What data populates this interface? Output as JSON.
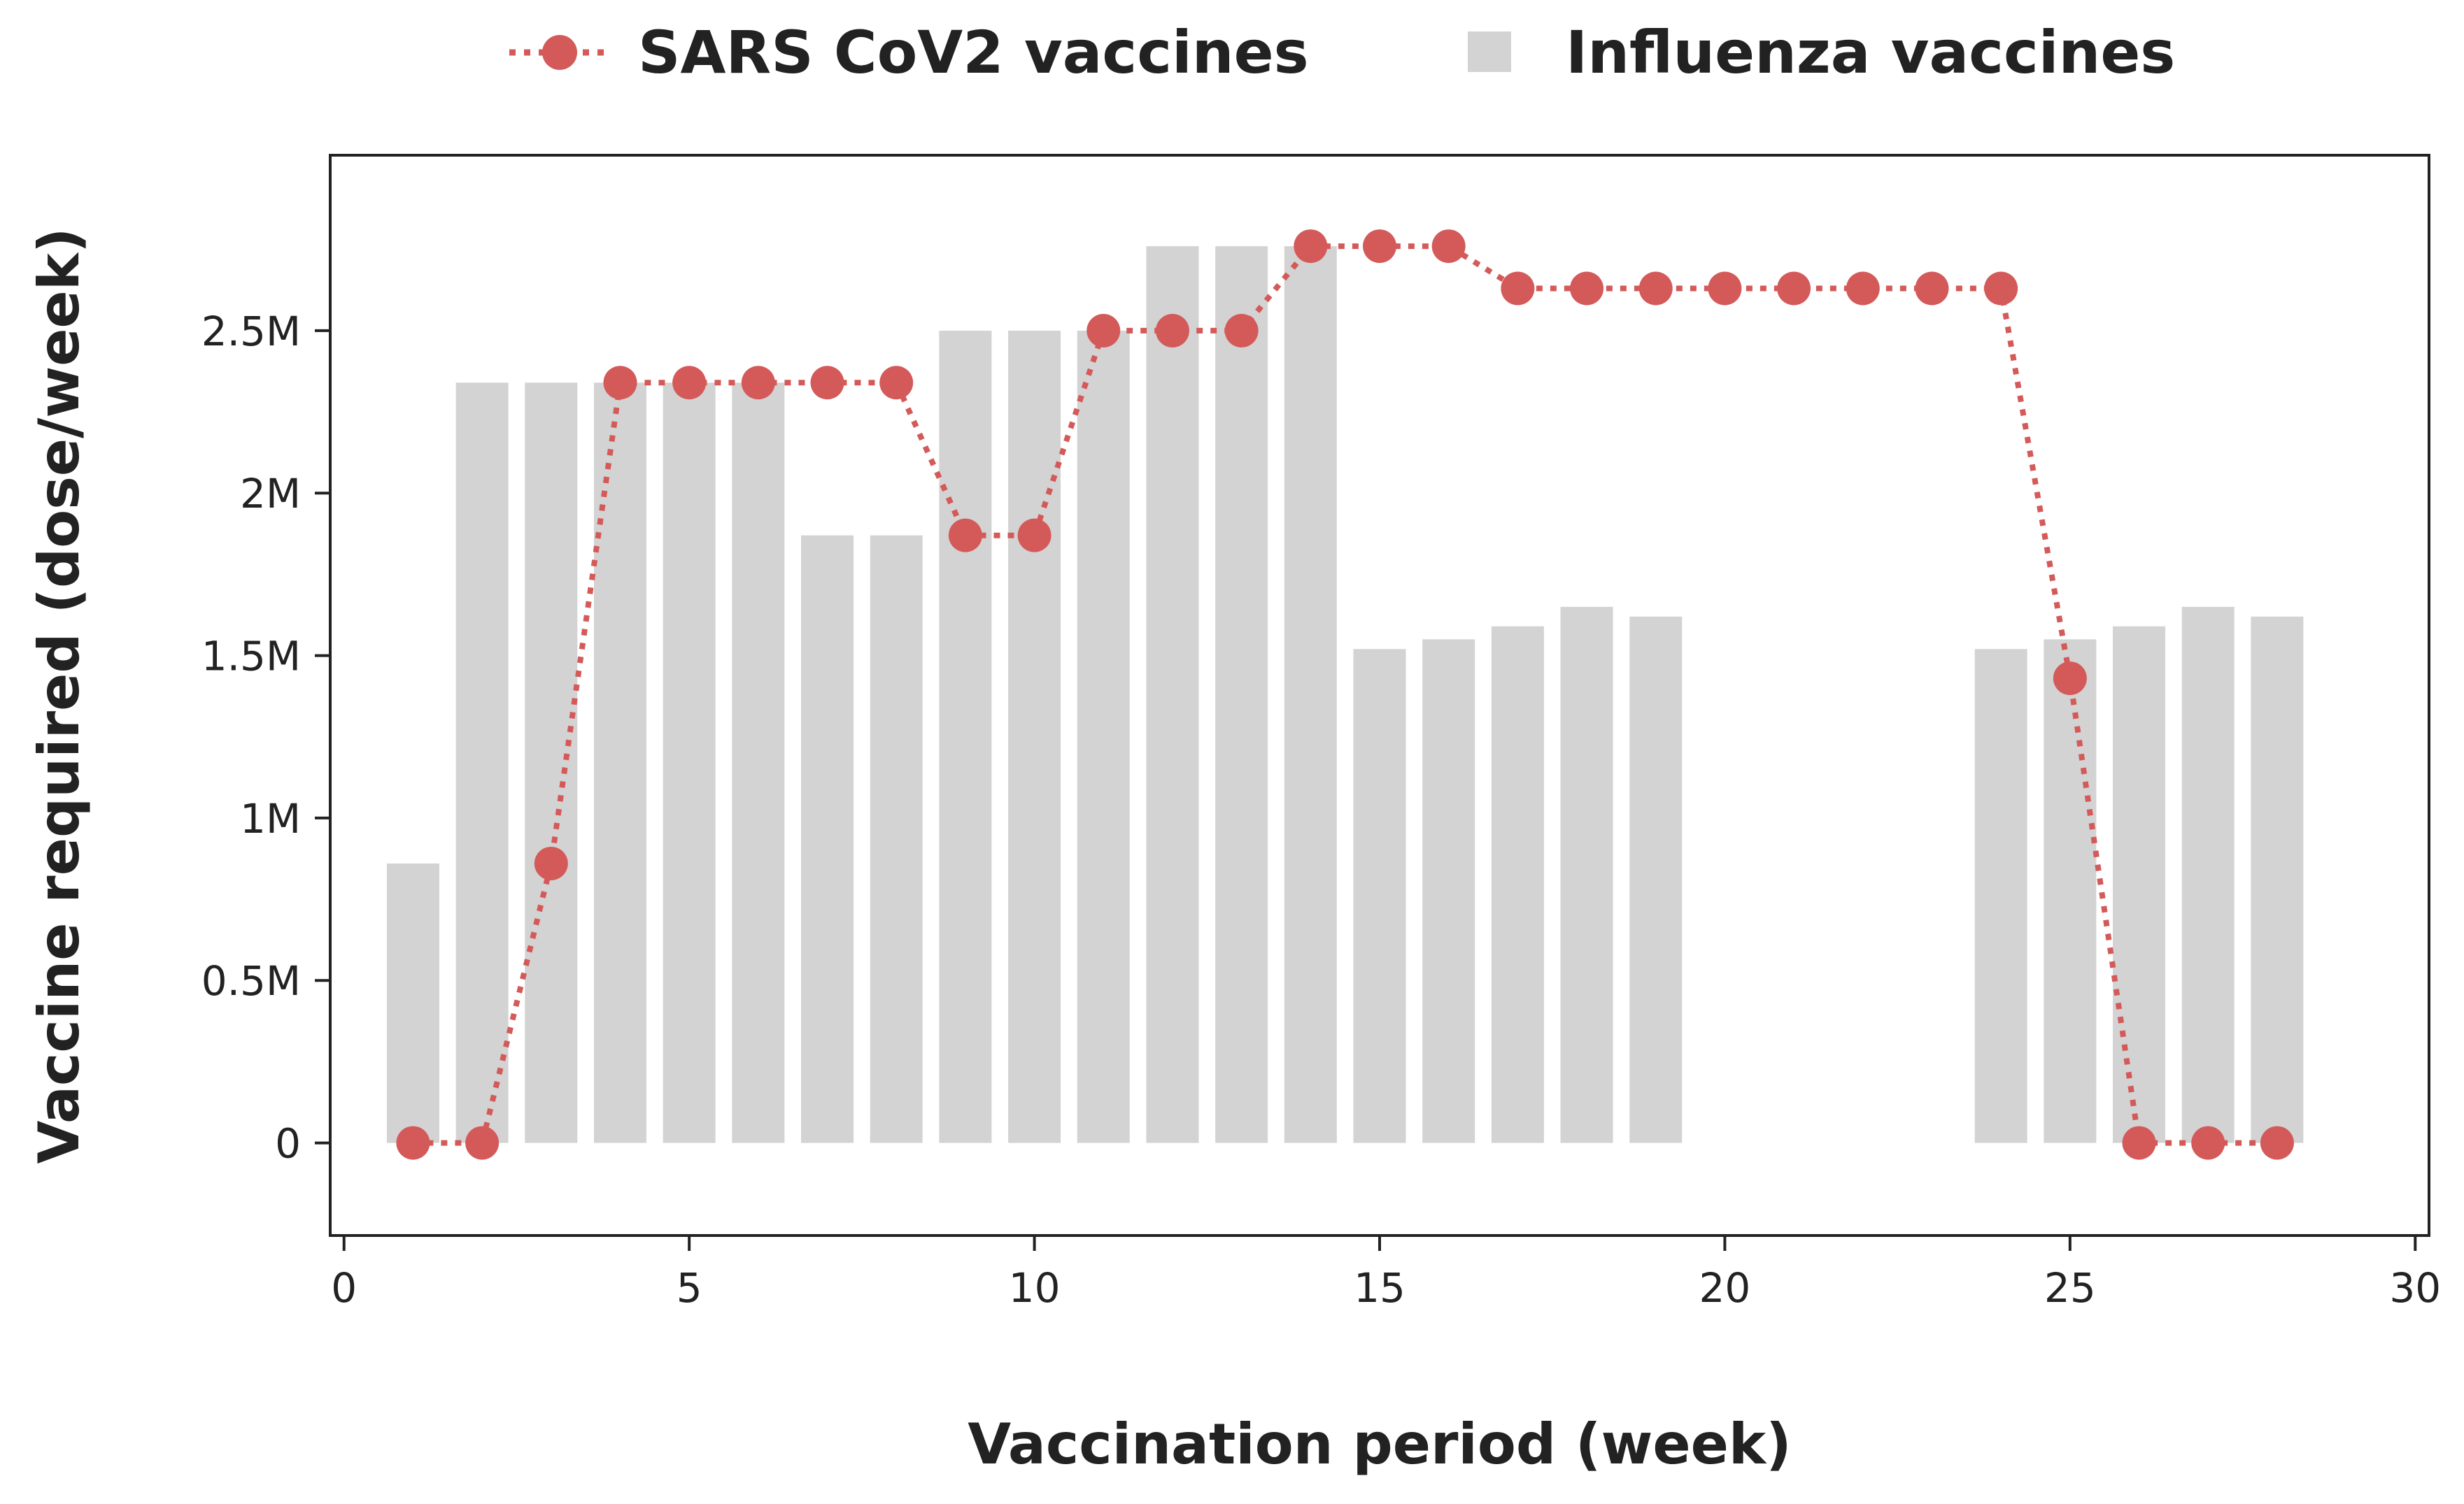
{
  "chart_data": {
    "type": "bar+line",
    "title": "",
    "xlabel": "Vaccination period (week)",
    "ylabel": "Vaccine required (dose/week)",
    "xlim": [
      -0.2,
      30.2
    ],
    "ylim": [
      -285000,
      3040000
    ],
    "xticks": [
      0,
      5,
      10,
      15,
      20,
      25,
      30
    ],
    "xtick_labels": [
      "0",
      "5",
      "10",
      "15",
      "20",
      "25",
      "30"
    ],
    "yticks": [
      0,
      500000,
      1000000,
      1500000,
      2000000,
      2500000
    ],
    "ytick_labels": [
      "0",
      "0.5M",
      "1M",
      "1.5M",
      "2M",
      "2.5M"
    ],
    "grid": false,
    "legend_position": "top-center",
    "colors": {
      "sars": "#d45a5a",
      "influenza": "#d3d3d3",
      "axis": "#222222"
    },
    "series": [
      {
        "name": "SARS CoV2 vaccines",
        "type": "line",
        "style": "dotted-with-markers",
        "x": [
          1,
          2,
          3,
          4,
          5,
          6,
          7,
          8,
          9,
          10,
          11,
          12,
          13,
          14,
          15,
          16,
          17,
          18,
          19,
          20,
          21,
          22,
          23,
          24,
          25,
          26,
          27,
          28
        ],
        "values": [
          0,
          0,
          860000,
          2340000,
          2340000,
          2340000,
          2340000,
          2340000,
          1870000,
          1870000,
          2500000,
          2500000,
          2500000,
          2760000,
          2760000,
          2760000,
          2630000,
          2630000,
          2630000,
          2630000,
          2630000,
          2630000,
          2630000,
          2630000,
          1430000,
          0,
          0,
          0
        ]
      },
      {
        "name": "Influenza vaccines",
        "type": "bar",
        "x": [
          1,
          2,
          3,
          4,
          5,
          6,
          7,
          8,
          9,
          10,
          11,
          12,
          13,
          14,
          15,
          16,
          17,
          18,
          19,
          24,
          25,
          26,
          27,
          28
        ],
        "values": [
          860000,
          2340000,
          2340000,
          2340000,
          2340000,
          2340000,
          1870000,
          1870000,
          2500000,
          2500000,
          2500000,
          2760000,
          2760000,
          2760000,
          1520000,
          1550000,
          1590000,
          1650000,
          1620000,
          1520000,
          1550000,
          1590000,
          1650000,
          1620000
        ]
      }
    ]
  }
}
